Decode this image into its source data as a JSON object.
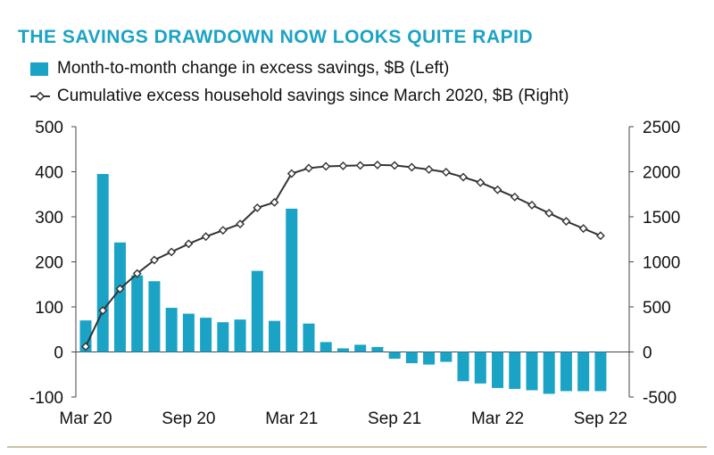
{
  "colors": {
    "title": "#1ba3c6",
    "bar": "#1ba3c6",
    "line": "#333333",
    "frame": "#c9c3a3"
  },
  "title": "THE SAVINGS DRAWDOWN NOW LOOKS QUITE RAPID",
  "legend": {
    "bar_label": "Month-to-month change in excess savings, $B (Left)",
    "line_label": "Cumulative excess household savings since March 2020, $B (Right)"
  },
  "chart_data": {
    "type": "bar+line",
    "title": "THE SAVINGS DRAWDOWN NOW LOOKS QUITE RAPID",
    "x_tick_labels": [
      "Mar 20",
      "Sep 20",
      "Mar 21",
      "Sep 21",
      "Mar 22",
      "Sep 22"
    ],
    "x_tick_indices": [
      0,
      6,
      12,
      18,
      24,
      30
    ],
    "months": [
      "Mar 20",
      "Apr 20",
      "May 20",
      "Jun 20",
      "Jul 20",
      "Aug 20",
      "Sep 20",
      "Oct 20",
      "Nov 20",
      "Dec 20",
      "Jan 21",
      "Feb 21",
      "Mar 21",
      "Apr 21",
      "May 21",
      "Jun 21",
      "Jul 21",
      "Aug 21",
      "Sep 21",
      "Oct 21",
      "Nov 21",
      "Dec 21",
      "Jan 22",
      "Feb 22",
      "Mar 22",
      "Apr 22",
      "May 22",
      "Jun 22",
      "Jul 22",
      "Aug 22",
      "Sep 22"
    ],
    "left_axis": {
      "label": "",
      "ylim": [
        -100,
        500
      ],
      "ticks": [
        500,
        400,
        300,
        200,
        100,
        0,
        -100
      ]
    },
    "right_axis": {
      "label": "",
      "ylim": [
        -500,
        2500
      ],
      "ticks": [
        2500,
        2000,
        1500,
        1000,
        500,
        0,
        -500
      ]
    },
    "series": [
      {
        "name": "Month-to-month change in excess savings, $B (Left)",
        "type": "bar",
        "axis": "left",
        "values": [
          70,
          395,
          243,
          170,
          157,
          98,
          85,
          76,
          66,
          72,
          180,
          69,
          318,
          63,
          22,
          8,
          16,
          11,
          -15,
          -25,
          -28,
          -22,
          -65,
          -70,
          -80,
          -82,
          -85,
          -93,
          -87,
          -87,
          -87
        ]
      },
      {
        "name": "Cumulative excess household savings since March 2020, $B (Right)",
        "type": "line",
        "axis": "right",
        "values": [
          60,
          460,
          700,
          870,
          1020,
          1110,
          1200,
          1280,
          1350,
          1420,
          1600,
          1660,
          1980,
          2040,
          2060,
          2065,
          2070,
          2075,
          2070,
          2050,
          2025,
          1995,
          1940,
          1880,
          1800,
          1720,
          1630,
          1540,
          1450,
          1370,
          1290
        ]
      }
    ],
    "grid": false
  }
}
